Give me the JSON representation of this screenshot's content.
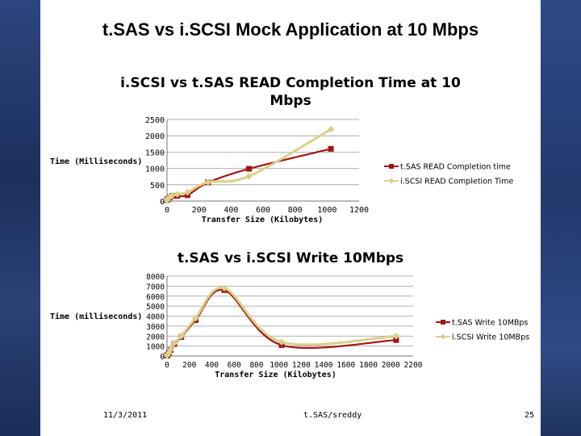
{
  "slide": {
    "title": "t.SAS vs i.SCSI Mock Application at 10 Mbps",
    "footer_date": "11/3/2011",
    "footer_author": "t.SAS/sreddy",
    "page_number": "25"
  },
  "colors": {
    "background": "#1f3568",
    "series_tsas": "#a31515",
    "series_iscsi": "#d9d08a",
    "gridline": "#9a9a9a"
  },
  "chart_data": [
    {
      "type": "line",
      "title": "i.SCSI vs t.SAS READ Completion Time at 10 Mbps",
      "title_line1": "i.SCSI vs t.SAS READ Completion Time at 10",
      "title_line2": "Mbps",
      "xlabel": "Transfer Size (Kilobytes)",
      "ylabel": "Time (Milliseconds)",
      "xlim": [
        0,
        1200
      ],
      "ylim": [
        0,
        2500
      ],
      "x_ticks": [
        0,
        200,
        400,
        600,
        800,
        1000,
        1200
      ],
      "y_ticks": [
        0,
        500,
        1000,
        1500,
        2000,
        2500
      ],
      "grid": "horizontal",
      "legend": "right",
      "series": [
        {
          "name": "t.SAS READ Completion time",
          "x": [
            0,
            4,
            16,
            32,
            64,
            128,
            256,
            512,
            1024
          ],
          "y": [
            30,
            60,
            110,
            160,
            160,
            180,
            570,
            990,
            1600
          ]
        },
        {
          "name": "i.SCSI READ Completion Time",
          "x": [
            0,
            4,
            16,
            32,
            64,
            128,
            256,
            512,
            1024
          ],
          "y": [
            20,
            70,
            120,
            170,
            210,
            270,
            580,
            760,
            2200
          ]
        }
      ]
    },
    {
      "type": "line",
      "title": "t.SAS vs i.SCSI Write 10Mbps",
      "xlabel": "Transfer Size (Kilobytes)",
      "ylabel": "Time (milliseconds)",
      "xlim": [
        0,
        2200
      ],
      "ylim": [
        0,
        8000
      ],
      "x_ticks": [
        0,
        200,
        400,
        600,
        800,
        1000,
        1200,
        1400,
        1600,
        1800,
        2000,
        2200
      ],
      "y_ticks": [
        0,
        1000,
        2000,
        3000,
        4000,
        5000,
        6000,
        7000,
        8000
      ],
      "grid": "horizontal",
      "legend": "right",
      "series": [
        {
          "name": "t.SAS Write 10MBps",
          "x": [
            0,
            4,
            16,
            32,
            64,
            128,
            256,
            512,
            1024,
            2048
          ],
          "y": [
            50,
            120,
            300,
            600,
            1200,
            1900,
            3600,
            6600,
            1100,
            1600
          ]
        },
        {
          "name": "i.SCSI Write 10MBps",
          "x": [
            0,
            4,
            16,
            32,
            64,
            128,
            256,
            512,
            1024,
            2048
          ],
          "y": [
            60,
            140,
            320,
            650,
            1300,
            2000,
            3800,
            6800,
            1400,
            2000
          ]
        }
      ]
    }
  ]
}
